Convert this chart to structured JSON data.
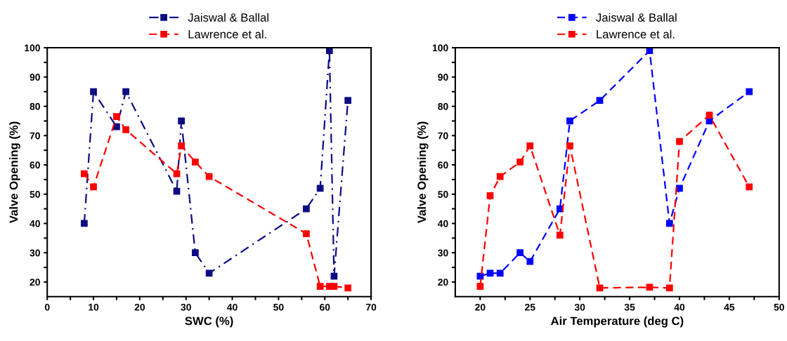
{
  "chart_data": [
    {
      "type": "line",
      "xlabel": "SWC (%)",
      "ylabel": "Valve Opening (%)",
      "xlim": [
        0,
        70
      ],
      "ylim": [
        15,
        100
      ],
      "xticks": [
        0,
        {
          "value": 5,
          "label": null
        },
        10,
        {
          "value": 15,
          "label": null
        },
        20,
        {
          "value": 25,
          "label": null
        },
        30,
        {
          "value": 35,
          "label": null
        },
        40,
        {
          "value": 45,
          "label": null
        },
        50,
        {
          "value": 55,
          "label": null
        },
        60,
        {
          "value": 65,
          "label": null
        },
        70
      ],
      "yticks": [
        20,
        {
          "value": 25,
          "label": null
        },
        30,
        {
          "value": 35,
          "label": null
        },
        40,
        {
          "value": 45,
          "label": null
        },
        50,
        {
          "value": 55,
          "label": null
        },
        60,
        {
          "value": 65,
          "label": null
        },
        70,
        {
          "value": 75,
          "label": null
        },
        80,
        {
          "value": 85,
          "label": null
        },
        90,
        {
          "value": 95,
          "label": null
        },
        100
      ],
      "marker": "square",
      "legend": "top",
      "grid": false,
      "series": [
        {
          "name": "Jaiswal & Ballal",
          "color": "#0c0c82",
          "line_style": "dashdot",
          "x": [
            8,
            10,
            15,
            17,
            28,
            29,
            32,
            35,
            56,
            59,
            61,
            62,
            65
          ],
          "values": [
            40,
            85,
            73,
            85,
            51,
            75,
            30,
            23,
            45,
            52,
            99,
            22,
            82
          ]
        },
        {
          "name": "Lawrence et al.",
          "color": "#ff0000",
          "line_style": "dashed",
          "x": [
            8,
            10,
            15,
            17,
            28,
            29,
            32,
            35,
            56,
            59,
            61,
            62,
            65
          ],
          "values": [
            57,
            52.5,
            76.5,
            72,
            57,
            66.5,
            61,
            56,
            36.5,
            18.5,
            18.5,
            18.5,
            18
          ]
        }
      ]
    },
    {
      "type": "line",
      "xlabel": "Air Temperature (deg C)",
      "ylabel": "Valve Opening (%)",
      "xlim": [
        17.5,
        50
      ],
      "ylim": [
        15,
        100
      ],
      "xticks": [
        20,
        {
          "value": 22.5,
          "label": null
        },
        25,
        {
          "value": 27.5,
          "label": null
        },
        30,
        {
          "value": 32.5,
          "label": null
        },
        35,
        {
          "value": 37.5,
          "label": null
        },
        40,
        {
          "value": 42.5,
          "label": null
        },
        45,
        {
          "value": 47.5,
          "label": null
        },
        50
      ],
      "yticks": [
        20,
        {
          "value": 25,
          "label": null
        },
        30,
        {
          "value": 35,
          "label": null
        },
        40,
        {
          "value": 45,
          "label": null
        },
        50,
        {
          "value": 55,
          "label": null
        },
        60,
        {
          "value": 65,
          "label": null
        },
        70,
        {
          "value": 75,
          "label": null
        },
        80,
        {
          "value": 85,
          "label": null
        },
        90,
        {
          "value": 95,
          "label": null
        },
        100
      ],
      "marker": "square",
      "legend": "top",
      "grid": false,
      "series": [
        {
          "name": "Jaiswal & Ballal",
          "color": "#0000ff",
          "line_style": "dashed",
          "x": [
            20,
            21,
            22,
            24,
            25,
            28,
            29,
            32,
            37,
            39,
            40,
            43,
            47
          ],
          "values": [
            22,
            23,
            23,
            30,
            27,
            45,
            75,
            82,
            99,
            40,
            52,
            75,
            85
          ]
        },
        {
          "name": "Lawrence et al.",
          "color": "#ff0000",
          "line_style": "dashed",
          "x": [
            20,
            21,
            22,
            24,
            25,
            28,
            29,
            32,
            37,
            39,
            40,
            43,
            47
          ],
          "values": [
            18.5,
            49.5,
            56,
            61,
            66.5,
            36,
            66.5,
            18,
            18.2,
            18,
            68,
            77,
            52.5
          ]
        }
      ]
    }
  ]
}
